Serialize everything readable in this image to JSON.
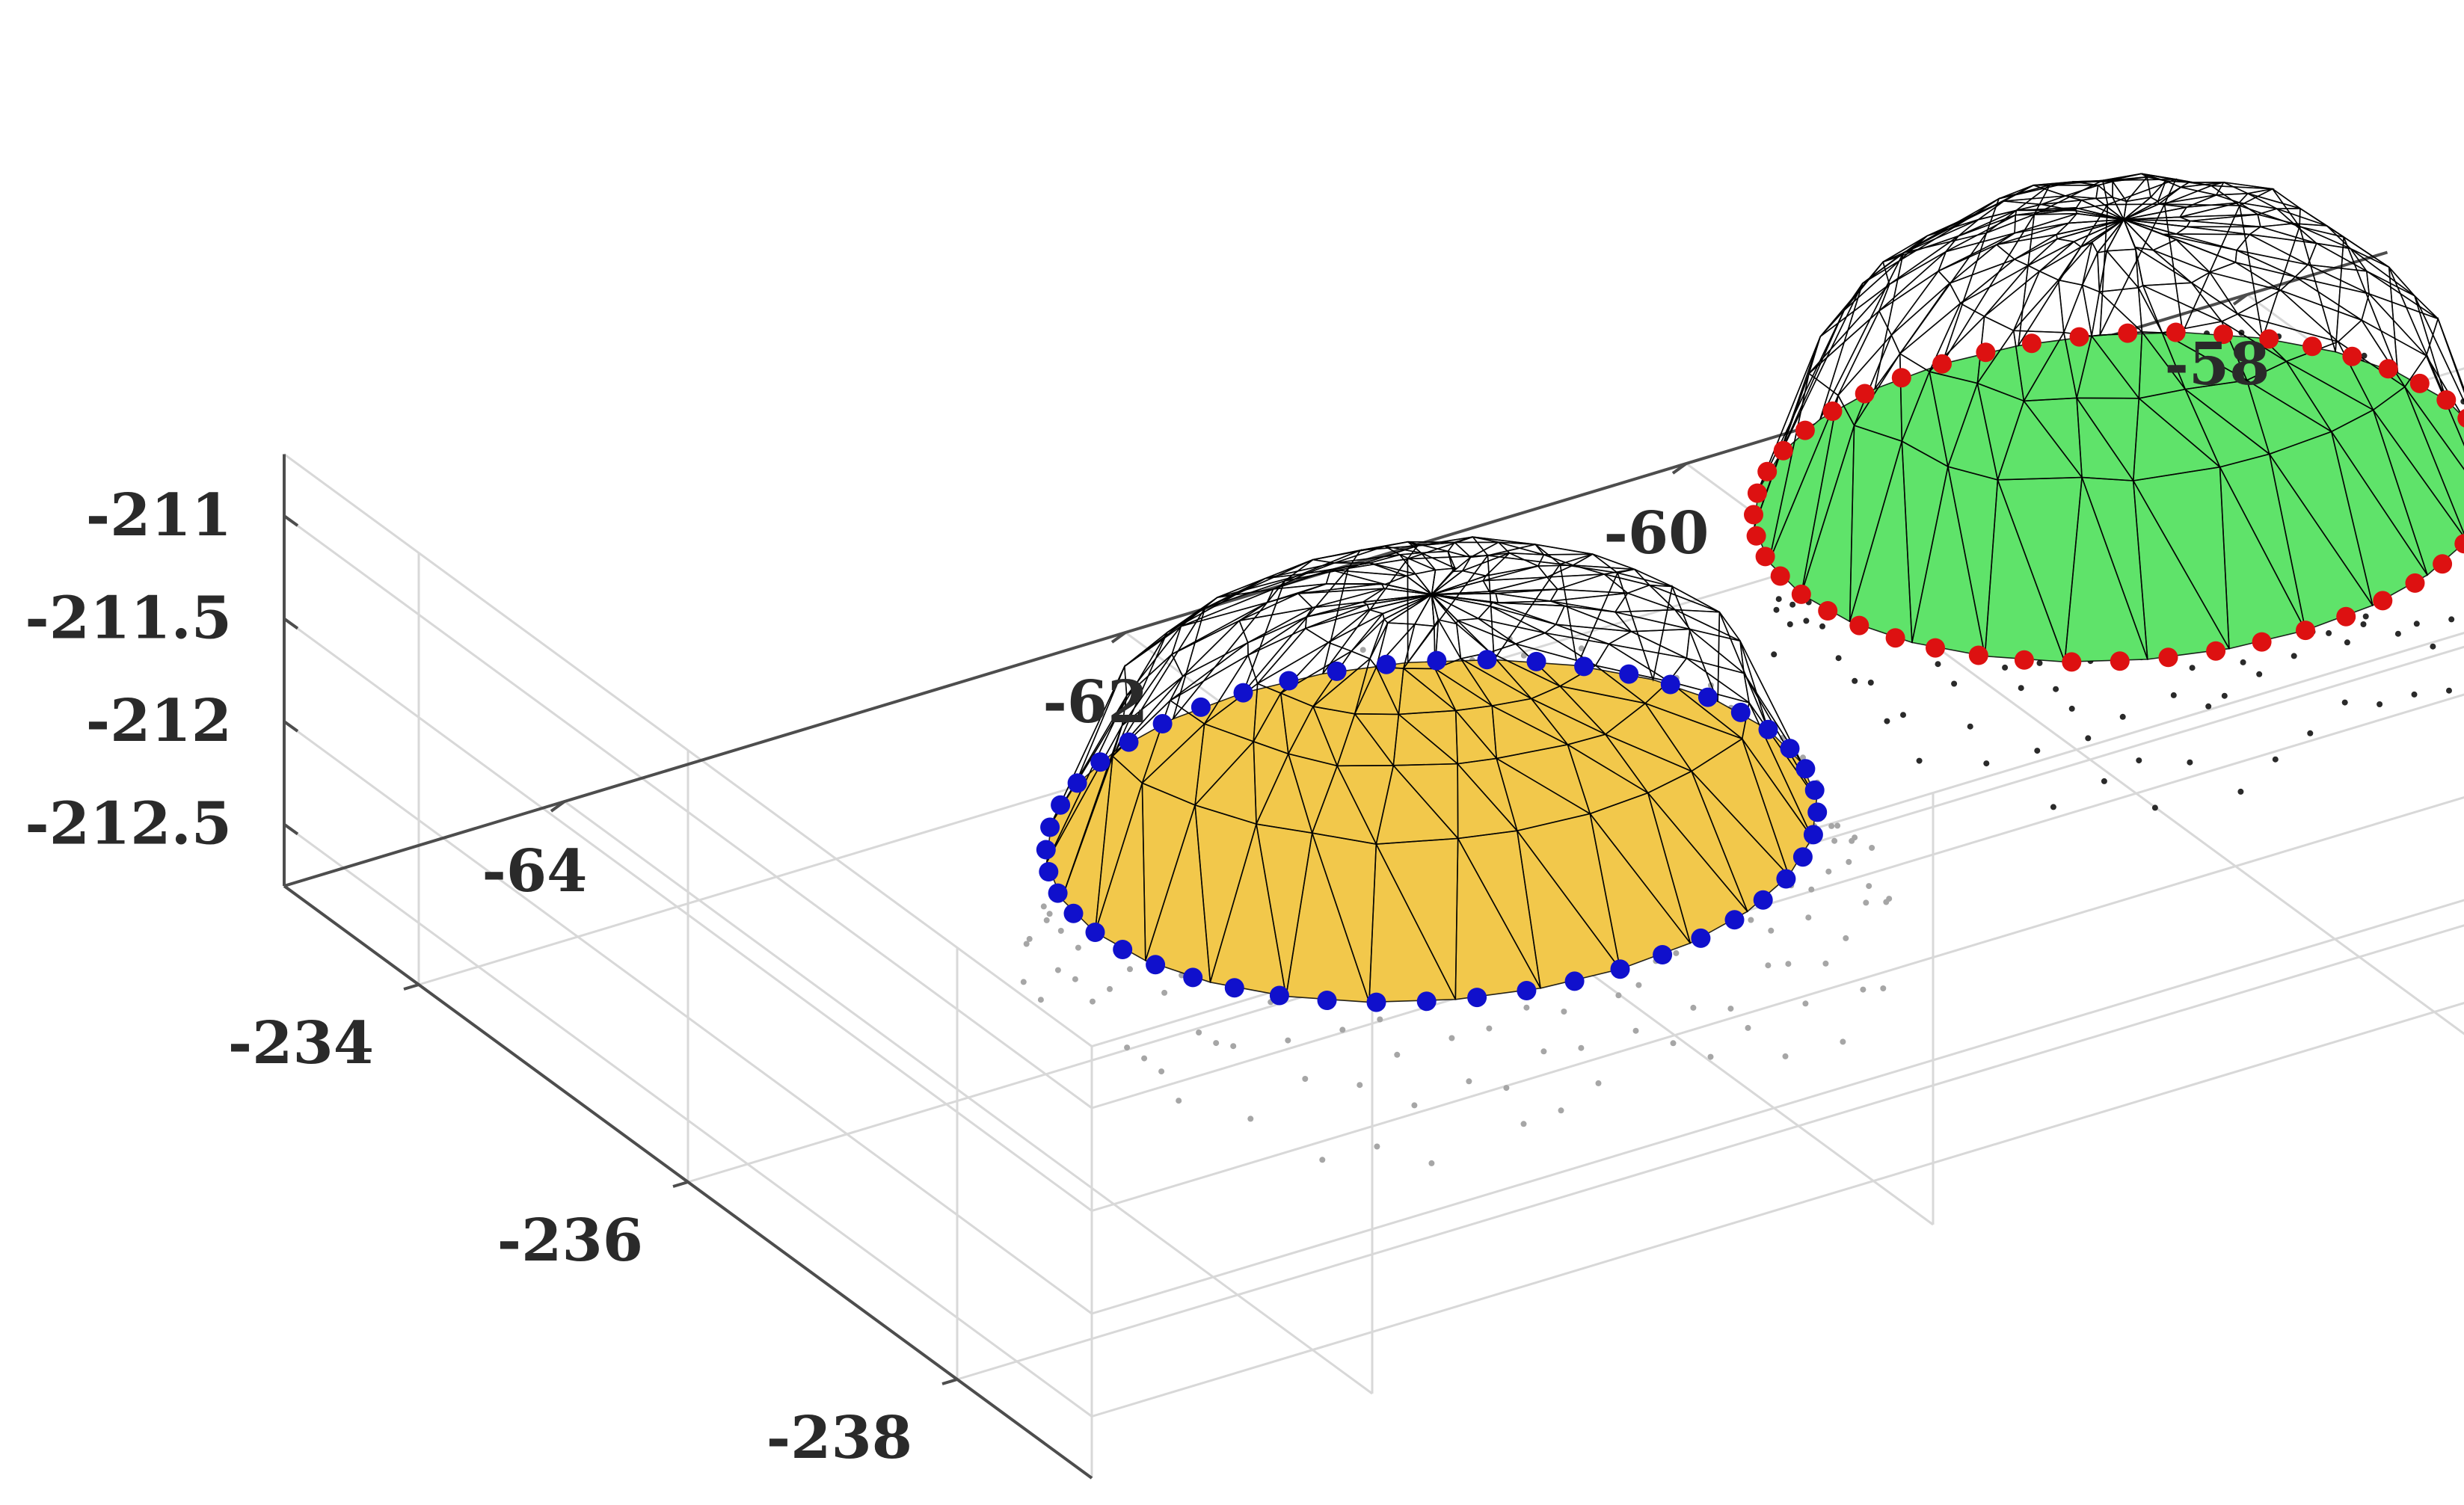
{
  "chart_data": {
    "type": "scatter",
    "projection": "3d",
    "title": "",
    "xlabel": "",
    "ylabel": "",
    "zlabel": "",
    "grid": true,
    "x_ticks": [
      "-58",
      "-60",
      "-62",
      "-64"
    ],
    "y_ticks": [
      "-234",
      "-236",
      "-238"
    ],
    "z_ticks": [
      "-211",
      "-211.5",
      "-212",
      "-212.5"
    ],
    "xlim": [
      -65,
      -57.5
    ],
    "ylim": [
      -239,
      -233
    ],
    "zlim": [
      -212.8,
      -210.7
    ],
    "series": [
      {
        "kind": "point-cloud",
        "color": "#a6a6a6",
        "center": {
          "x": -62.5,
          "y": -236.5
        },
        "extent": {
          "x": 2.8,
          "y": 3.2
        },
        "z_range": [
          -212.7,
          -211.2
        ]
      },
      {
        "kind": "triangulated-surface",
        "face_color": "#f2c84b",
        "edge_color": "#000000",
        "center": {
          "x": -62.3,
          "y": -235.9
        },
        "extent": {
          "x": 2.4,
          "y": 2.8
        },
        "z_top": -211.1
      },
      {
        "kind": "boundary-points",
        "color": "#1010cc",
        "center": {
          "x": -62.3,
          "y": -235.9
        },
        "extent": {
          "x": 2.4,
          "y": 2.8
        }
      },
      {
        "kind": "point-cloud",
        "color": "#2a2a2a",
        "center": {
          "x": -59.5,
          "y": -235.6
        },
        "extent": {
          "x": 2.6,
          "y": 3.0
        },
        "z_range": [
          -212.7,
          -211.3
        ]
      },
      {
        "kind": "triangulated-surface",
        "face_color": "#5fe36a",
        "edge_color": "#000000",
        "center": {
          "x": -59.4,
          "y": -235.0
        },
        "extent": {
          "x": 2.3,
          "y": 2.7
        },
        "z_top": -210.9
      },
      {
        "kind": "boundary-points",
        "color": "#dd1111",
        "center": {
          "x": -59.4,
          "y": -235.0
        },
        "extent": {
          "x": 2.3,
          "y": 2.7
        }
      }
    ]
  }
}
